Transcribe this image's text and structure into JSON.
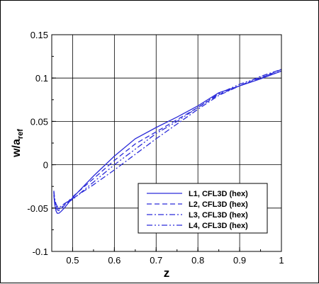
{
  "chart_data": {
    "type": "line",
    "xlabel": "z",
    "ylabel": "w/a",
    "ylabel_subscript": "ref",
    "xlim": [
      0.45,
      1.0
    ],
    "ylim": [
      -0.1,
      0.15
    ],
    "xticks": [
      0.5,
      0.6,
      0.7,
      0.8,
      0.9,
      1
    ],
    "xtick_labels": [
      "0.5",
      "0.6",
      "0.7",
      "0.8",
      "0.9",
      "1"
    ],
    "yticks": [
      -0.1,
      -0.05,
      0,
      0.05,
      0.1,
      0.15
    ],
    "ytick_labels": [
      "-0.1",
      "-0.05",
      "0",
      "0.05",
      "0.1",
      "0.15"
    ],
    "grid": true,
    "legend_position": "bottom-right",
    "line_color": "#2b2bd9",
    "series": [
      {
        "name": "L1, CFL3D (hex)",
        "dash": "solid",
        "x": [
          0.455,
          0.457,
          0.46,
          0.463,
          0.467,
          0.472,
          0.48,
          0.5,
          0.55,
          0.6,
          0.65,
          0.7,
          0.75,
          0.8,
          0.85,
          0.9,
          0.95,
          1.0
        ],
        "y": [
          -0.035,
          -0.045,
          -0.053,
          -0.056,
          -0.056,
          -0.054,
          -0.05,
          -0.038,
          -0.013,
          0.01,
          0.03,
          0.043,
          0.055,
          0.068,
          0.083,
          0.091,
          0.099,
          0.108
        ]
      },
      {
        "name": "L2, CFL3D (hex)",
        "dash": "dashed",
        "x": [
          0.455,
          0.457,
          0.46,
          0.463,
          0.467,
          0.472,
          0.48,
          0.5,
          0.55,
          0.6,
          0.65,
          0.7,
          0.75,
          0.8,
          0.85,
          0.9,
          0.95,
          1.0
        ],
        "y": [
          -0.032,
          -0.042,
          -0.049,
          -0.052,
          -0.053,
          -0.051,
          -0.047,
          -0.037,
          -0.016,
          0.005,
          0.024,
          0.038,
          0.052,
          0.066,
          0.081,
          0.091,
          0.1,
          0.11
        ]
      },
      {
        "name": "L3, CFL3D (hex)",
        "dash": "dashdot",
        "x": [
          0.455,
          0.457,
          0.46,
          0.463,
          0.467,
          0.472,
          0.48,
          0.5,
          0.55,
          0.6,
          0.65,
          0.7,
          0.75,
          0.8,
          0.85,
          0.9,
          0.95,
          1.0
        ],
        "y": [
          -0.03,
          -0.039,
          -0.045,
          -0.048,
          -0.049,
          -0.048,
          -0.045,
          -0.039,
          -0.023,
          -0.006,
          0.012,
          0.03,
          0.047,
          0.064,
          0.08,
          0.091,
          0.102,
          0.11
        ]
      },
      {
        "name": "L4, CFL3D (hex)",
        "dash": "dashdotdot",
        "x": [
          0.455,
          0.457,
          0.46,
          0.463,
          0.467,
          0.472,
          0.48,
          0.5,
          0.55,
          0.6,
          0.65,
          0.7,
          0.75,
          0.8,
          0.85,
          0.9,
          0.95,
          1.0
        ],
        "y": [
          -0.031,
          -0.041,
          -0.047,
          -0.05,
          -0.051,
          -0.05,
          -0.046,
          -0.04,
          -0.02,
          0.0,
          0.018,
          0.036,
          0.05,
          0.066,
          0.082,
          0.093,
          0.101,
          0.108
        ]
      }
    ]
  }
}
